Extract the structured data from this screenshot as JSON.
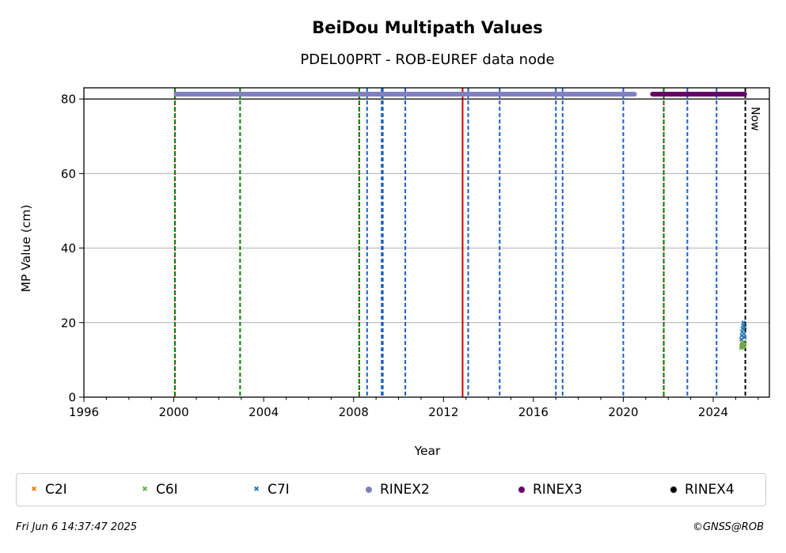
{
  "chart_data": {
    "type": "scatter",
    "title": "BeiDou Multipath Values",
    "subtitle": "PDEL00PRT - ROB-EUREF data node",
    "xlabel": "Year",
    "ylabel": "MP Value (cm)",
    "xlim": [
      1996,
      2026.5
    ],
    "ylim": [
      0,
      83
    ],
    "xticks": [
      "1996",
      "2000",
      "2004",
      "2008",
      "2012",
      "2016",
      "2020",
      "2024"
    ],
    "yticks": [
      "0",
      "20",
      "40",
      "60",
      "80"
    ],
    "grid": "y-major",
    "legend_position": "bottom",
    "now_label": "Now",
    "now_date": 2025.43,
    "reference_line_y": 80,
    "vertical_lines": [
      {
        "x": 2000.05,
        "color": "#cc0000",
        "style": "dotted"
      },
      {
        "x": 2000.05,
        "color": "#008000",
        "style": "dashed"
      },
      {
        "x": 2002.95,
        "color": "#008000",
        "style": "dashed"
      },
      {
        "x": 2008.25,
        "color": "#cc0000",
        "style": "dotted"
      },
      {
        "x": 2008.25,
        "color": "#008000",
        "style": "dashed"
      },
      {
        "x": 2008.6,
        "color": "#1f5fbf",
        "style": "dashed"
      },
      {
        "x": 2009.25,
        "color": "#1f5fbf",
        "style": "dashed"
      },
      {
        "x": 2009.3,
        "color": "#1f5fbf",
        "style": "dashed"
      },
      {
        "x": 2010.3,
        "color": "#1f5fbf",
        "style": "dashed"
      },
      {
        "x": 2012.85,
        "color": "#cc0000",
        "style": "solid"
      },
      {
        "x": 2013.1,
        "color": "#1f5fbf",
        "style": "dashed"
      },
      {
        "x": 2014.5,
        "color": "#1f5fbf",
        "style": "dashed"
      },
      {
        "x": 2017.0,
        "color": "#1f5fbf",
        "style": "dashed"
      },
      {
        "x": 2017.3,
        "color": "#1f5fbf",
        "style": "dashed"
      },
      {
        "x": 2020.0,
        "color": "#1f5fbf",
        "style": "dashed"
      },
      {
        "x": 2021.8,
        "color": "#cc0000",
        "style": "dotted"
      },
      {
        "x": 2021.8,
        "color": "#008000",
        "style": "dashed"
      },
      {
        "x": 2022.85,
        "color": "#1f5fbf",
        "style": "dashed"
      },
      {
        "x": 2024.15,
        "color": "#1f5fbf",
        "style": "dashed"
      }
    ],
    "availability": [
      {
        "name": "RINEX2",
        "color": "#8080c0",
        "y": 81.3,
        "ranges": [
          [
            2000.1,
            2002.9
          ],
          [
            2003.0,
            2020.5
          ]
        ]
      },
      {
        "name": "RINEX3",
        "color": "#660066",
        "y": 81.3,
        "ranges": [
          [
            2021.3,
            2025.4
          ]
        ]
      },
      {
        "name": "RINEX4",
        "color": "#000000",
        "y": 81.3,
        "ranges": []
      }
    ],
    "series": [
      {
        "name": "C2I",
        "color": "#ff7f0e",
        "marker": "x",
        "points": [
          [
            2025.25,
            13.8
          ],
          [
            2025.28,
            14.2
          ],
          [
            2025.3,
            13.5
          ],
          [
            2025.33,
            14.0
          ],
          [
            2025.36,
            13.7
          ],
          [
            2025.39,
            14.1
          ]
        ]
      },
      {
        "name": "C6I",
        "color": "#6aa84f",
        "marker": "x",
        "points": [
          [
            2025.24,
            13.2
          ],
          [
            2025.27,
            13.9
          ],
          [
            2025.3,
            14.5
          ],
          [
            2025.33,
            13.4
          ],
          [
            2025.36,
            14.8
          ],
          [
            2025.39,
            13.6
          ],
          [
            2025.41,
            14.3
          ]
        ]
      },
      {
        "name": "C7I",
        "color": "#1f77b4",
        "marker": "x",
        "points": [
          [
            2025.25,
            15.5
          ],
          [
            2025.27,
            16.5
          ],
          [
            2025.29,
            17.5
          ],
          [
            2025.31,
            18.4
          ],
          [
            2025.33,
            19.2
          ],
          [
            2025.35,
            20.0
          ],
          [
            2025.37,
            17.0
          ],
          [
            2025.39,
            16.0
          ],
          [
            2025.41,
            18.8
          ]
        ]
      }
    ],
    "legend": [
      {
        "name": "C2I",
        "color": "#ff7f0e",
        "marker": "x"
      },
      {
        "name": "C6I",
        "color": "#6aa84f",
        "marker": "x"
      },
      {
        "name": "C7I",
        "color": "#1f77b4",
        "marker": "x"
      },
      {
        "name": "RINEX2",
        "color": "#8080c0",
        "marker": "dot"
      },
      {
        "name": "RINEX3",
        "color": "#660066",
        "marker": "dot"
      },
      {
        "name": "RINEX4",
        "color": "#000000",
        "marker": "dot"
      }
    ]
  },
  "footer": {
    "timestamp": "Fri Jun  6 14:37:47 2025",
    "copyright": "©GNSS@ROB"
  }
}
